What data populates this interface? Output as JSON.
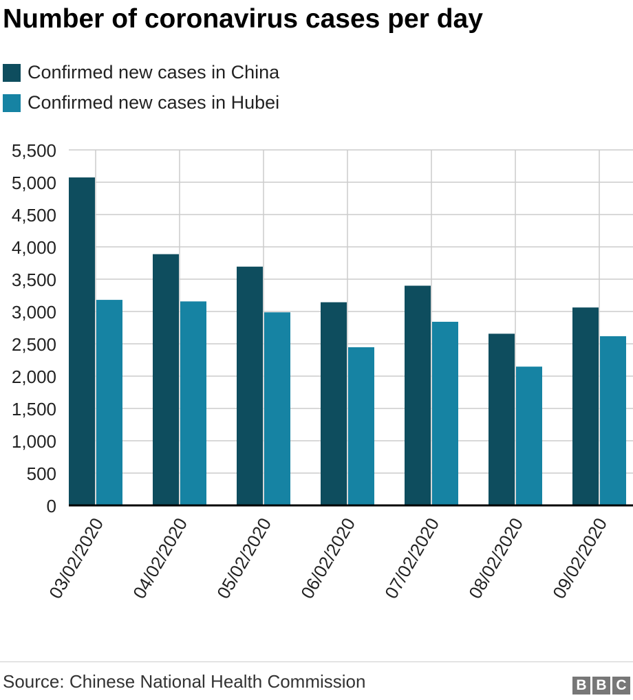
{
  "chart_data": {
    "type": "bar",
    "title": "Number of coronavirus cases per day",
    "categories": [
      "03/02/2020",
      "04/02/2020",
      "05/02/2020",
      "06/02/2020",
      "07/02/2020",
      "08/02/2020",
      "09/02/2020"
    ],
    "series": [
      {
        "name": "Confirmed new cases in China",
        "color": "#0e4d5e",
        "values": [
          5074,
          3887,
          3694,
          3143,
          3399,
          2656,
          3062
        ]
      },
      {
        "name": "Confirmed new cases in Hubei",
        "color": "#1683a3",
        "values": [
          3180,
          3156,
          2987,
          2447,
          2841,
          2147,
          2618
        ]
      }
    ],
    "xlabel": "",
    "ylabel": "",
    "ylim": [
      0,
      5500
    ],
    "yticks": [
      0,
      500,
      1000,
      1500,
      2000,
      2500,
      3000,
      3500,
      4000,
      4500,
      5000,
      5500
    ],
    "ytick_labels": [
      "0",
      "500",
      "1,000",
      "1,500",
      "2,000",
      "2,500",
      "3,000",
      "3,500",
      "4,000",
      "4,500",
      "5,000",
      "5,500"
    ],
    "grid": true,
    "legend": "top-left"
  },
  "source": "Source: Chinese National Health Commission",
  "logo": [
    "B",
    "B",
    "C"
  ]
}
